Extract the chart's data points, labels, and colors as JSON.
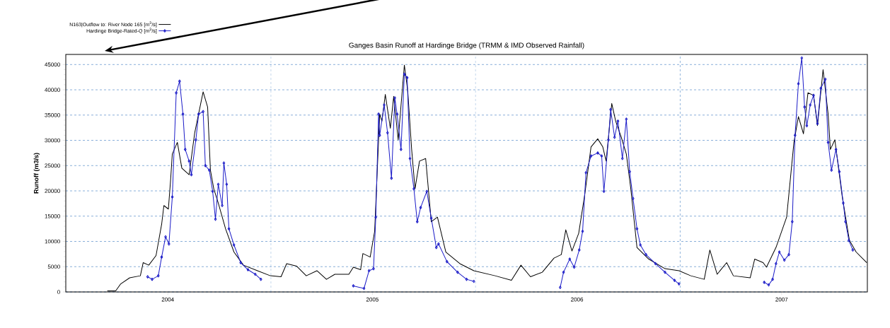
{
  "chart_data": {
    "type": "line",
    "title": "Ganges Basin Runoff at Hardinge Bridge (TRMM & IMD Observed Rainfall)",
    "ylabel": "Runoff (m3/s)",
    "xlim": [
      "2004-01-01",
      "2007-12-01"
    ],
    "ylim": [
      0,
      47000
    ],
    "xticks": [
      {
        "value": "2004-07-01",
        "label": "2004"
      },
      {
        "value": "2005-07-01",
        "label": "2005"
      },
      {
        "value": "2006-07-01",
        "label": "2006"
      },
      {
        "value": "2007-07-01",
        "label": "2007"
      }
    ],
    "yticks": [
      0,
      5000,
      10000,
      15000,
      20000,
      25000,
      30000,
      35000,
      40000,
      45000
    ],
    "grid": "y",
    "legend": "top left",
    "ref_lines": [
      {
        "axis": "x",
        "value": "2005-01-01",
        "color": "#3a78c0",
        "line_style": "dashed"
      },
      {
        "axis": "x",
        "value": "2006-01-01",
        "color": "#3a78c0",
        "line_style": "dashed"
      },
      {
        "axis": "x",
        "value": "2007-01-01",
        "color": "#3a78c0",
        "line_style": "dashed"
      }
    ],
    "series": [
      {
        "name": "N163|Outflow to: River Node 165 [m$^{3}$/s]",
        "color": "#000000",
        "marker": "none",
        "x": [
          "2004-03-15",
          "2004-03-30",
          "2004-04-08",
          "2004-04-24",
          "2004-05-13",
          "2004-05-18",
          "2004-05-28",
          "2004-06-10",
          "2004-06-20",
          "2004-06-24",
          "2004-07-02",
          "2004-07-06",
          "2004-07-09",
          "2004-07-18",
          "2004-07-26",
          "2004-08-08",
          "2004-08-18",
          "2004-09-02",
          "2004-09-10",
          "2004-09-15",
          "2004-09-21",
          "2004-09-29",
          "2004-10-12",
          "2004-10-27",
          "2004-11-13",
          "2004-12-08",
          "2004-12-31",
          "2005-01-19",
          "2005-01-29",
          "2005-02-16",
          "2005-03-05",
          "2005-03-24",
          "2005-04-10",
          "2005-04-25",
          "2005-05-20",
          "2005-05-28",
          "2005-06-10",
          "2005-06-14",
          "2005-06-27",
          "2005-07-05",
          "2005-07-14",
          "2005-07-18",
          "2005-07-24",
          "2005-08-02",
          "2005-08-08",
          "2005-08-16",
          "2005-08-27",
          "2005-09-02",
          "2005-09-09",
          "2005-09-15",
          "2005-09-23",
          "2005-10-04",
          "2005-10-14",
          "2005-10-25",
          "2005-11-09",
          "2005-12-04",
          "2005-12-29",
          "2006-02-05",
          "2006-03-06",
          "2006-03-23",
          "2006-04-09",
          "2006-04-30",
          "2006-05-21",
          "2006-06-03",
          "2006-06-11",
          "2006-06-22",
          "2006-07-04",
          "2006-07-15",
          "2006-07-26",
          "2006-08-07",
          "2006-08-16",
          "2006-08-22",
          "2006-09-01",
          "2006-09-08",
          "2006-09-18",
          "2006-09-27",
          "2006-10-05",
          "2006-10-16",
          "2006-11-06",
          "2006-12-05",
          "2006-12-30",
          "2007-01-20",
          "2007-02-13",
          "2007-02-23",
          "2007-03-08",
          "2007-03-25",
          "2007-04-06",
          "2007-05-06",
          "2007-05-14",
          "2007-05-29",
          "2007-06-04",
          "2007-06-21",
          "2007-07-10",
          "2007-07-23",
          "2007-07-31",
          "2007-08-09",
          "2007-08-17",
          "2007-08-27",
          "2007-09-03",
          "2007-09-13",
          "2007-09-22",
          "2007-09-26",
          "2007-10-04",
          "2007-10-17",
          "2007-10-30",
          "2007-11-11",
          "2007-11-30"
        ],
        "values": [
          200,
          200,
          1600,
          2800,
          3200,
          5800,
          5300,
          7200,
          13400,
          17100,
          16400,
          22200,
          27300,
          29600,
          24500,
          23200,
          31500,
          39600,
          36600,
          24100,
          20400,
          17600,
          12500,
          7900,
          5300,
          4200,
          3200,
          3000,
          5600,
          5100,
          3200,
          4200,
          2500,
          3500,
          3500,
          4900,
          4400,
          7600,
          6900,
          12000,
          35200,
          33800,
          39100,
          32400,
          38700,
          30100,
          44900,
          39800,
          28200,
          20400,
          25900,
          26400,
          13900,
          14800,
          7900,
          5600,
          4200,
          3200,
          2300,
          5300,
          3000,
          3900,
          6700,
          7400,
          12300,
          8100,
          11600,
          19400,
          28700,
          30300,
          28700,
          25900,
          37300,
          33800,
          30600,
          27300,
          20400,
          8800,
          6500,
          4600,
          4200,
          3200,
          2500,
          8300,
          3500,
          5800,
          3200,
          2800,
          6500,
          5800,
          4900,
          8800,
          14800,
          29600,
          34700,
          31300,
          39400,
          38900,
          32900,
          44000,
          35200,
          28200,
          30100,
          19000,
          10200,
          7900,
          5800
        ]
      },
      {
        "name": "Hardinge Bridge-Rated-Q [m$^{3}$/s]",
        "color": "#1c1cc8",
        "marker": "diamond",
        "x": [
          "2004-05-26",
          "2004-06-03",
          "2004-06-14",
          "2004-06-20",
          "2004-06-27",
          "2004-07-03",
          "2004-07-09",
          "2004-07-16",
          "2004-07-22",
          "2004-07-28",
          "2004-08-01",
          "2004-08-08",
          "2004-08-12",
          "2004-08-20",
          "2004-08-25",
          "2004-09-02",
          "2004-09-06",
          "2004-09-13",
          "2004-09-19",
          "2004-09-24",
          "2004-09-29",
          "2004-10-06",
          "2004-10-09",
          "2004-10-14",
          "2004-10-18",
          "2004-10-27",
          "2004-11-08",
          "2004-11-21",
          "2004-12-04",
          "2004-12-14",
          "2005-03-01",
          "2005-05-28",
          "2005-06-16",
          "2005-06-25",
          "2005-07-03",
          "2005-07-07",
          "2005-07-12",
          "2005-07-14",
          "2005-07-22",
          "2005-07-28",
          "2005-08-04",
          "2005-08-10",
          "2005-08-14",
          "2005-08-21",
          "2005-08-27",
          "2005-09-01",
          "2005-09-06",
          "2005-09-13",
          "2005-09-19",
          "2005-09-25",
          "2005-10-06",
          "2005-10-14",
          "2005-10-23",
          "2005-10-27",
          "2005-11-11",
          "2005-11-30",
          "2005-12-16",
          "2005-12-29",
          "2006-03-01",
          "2006-06-01",
          "2006-06-07",
          "2006-06-18",
          "2006-06-26",
          "2006-07-05",
          "2006-07-11",
          "2006-07-17",
          "2006-07-26",
          "2006-08-07",
          "2006-08-14",
          "2006-08-18",
          "2006-08-26",
          "2006-08-30",
          "2006-09-06",
          "2006-09-12",
          "2006-09-20",
          "2006-09-27",
          "2006-10-03",
          "2006-10-09",
          "2006-10-16",
          "2006-10-22",
          "2006-11-01",
          "2006-11-18",
          "2006-12-05",
          "2006-12-22",
          "2006-12-30",
          "2007-03-01",
          "2007-05-31",
          "2007-06-08",
          "2007-06-15",
          "2007-06-21",
          "2007-06-27",
          "2007-07-06",
          "2007-07-14",
          "2007-07-20",
          "2007-07-25",
          "2007-07-31",
          "2007-08-06",
          "2007-08-11",
          "2007-08-15",
          "2007-08-21",
          "2007-08-27",
          "2007-09-03",
          "2007-09-09",
          "2007-09-17",
          "2007-09-22",
          "2007-09-28",
          "2007-10-06",
          "2007-10-12",
          "2007-10-19",
          "2007-10-23",
          "2007-10-29",
          "2007-11-05"
        ],
        "values": [
          3000,
          2500,
          3200,
          6900,
          10900,
          9500,
          18800,
          39400,
          41700,
          35200,
          28200,
          25900,
          23200,
          30100,
          35200,
          35700,
          25000,
          24100,
          19900,
          14400,
          21300,
          17100,
          25500,
          21300,
          12500,
          9300,
          5800,
          4400,
          3500,
          2500,
          null,
          1200,
          700,
          4200,
          4600,
          14800,
          35200,
          31000,
          37000,
          31500,
          22500,
          38400,
          35200,
          28200,
          43100,
          42400,
          26400,
          20400,
          13900,
          16700,
          19900,
          14600,
          8800,
          9500,
          6000,
          3900,
          2500,
          2100,
          null,
          900,
          3900,
          6500,
          4900,
          8300,
          12000,
          23600,
          26900,
          27500,
          26900,
          19900,
          30100,
          36100,
          30600,
          33800,
          26400,
          34200,
          23800,
          18500,
          12500,
          9300,
          7400,
          5600,
          3900,
          2300,
          1600,
          null,
          1900,
          1400,
          2500,
          5600,
          7900,
          6300,
          7400,
          13900,
          31000,
          41200,
          46300,
          36600,
          32900,
          37000,
          38900,
          33300,
          40300,
          42100,
          29600,
          24100,
          28200,
          23800,
          17600,
          13900,
          10200,
          8300
        ]
      }
    ]
  }
}
